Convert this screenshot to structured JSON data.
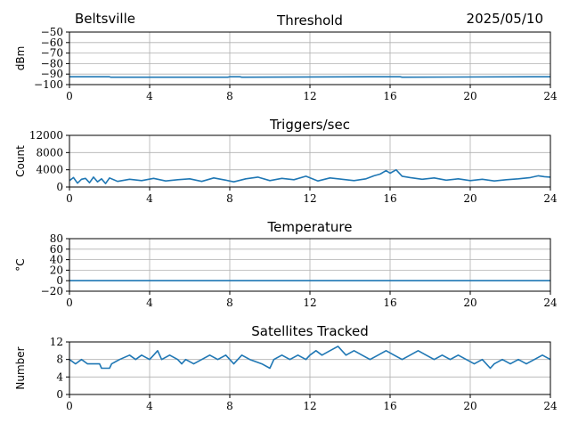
{
  "header": {
    "station": "Beltsville",
    "date": "2025/05/10"
  },
  "colors": {
    "series": "#1f77b4",
    "grid": "#b0b0b0",
    "axis": "#000000"
  },
  "chart_data": [
    {
      "type": "line",
      "title": "Threshold",
      "xlabel": "",
      "ylabel": "dBm",
      "xlim": [
        0,
        24
      ],
      "ylim": [
        -100,
        -50
      ],
      "xticks": [
        0,
        4,
        8,
        12,
        16,
        20,
        24
      ],
      "yticks": [
        -100,
        -90,
        -80,
        -70,
        -60,
        -50
      ],
      "ytick_labels": [
        "−100",
        "−90",
        "−80",
        "−70",
        "−60",
        "−50"
      ],
      "grid": true,
      "series": [
        {
          "x": [
            0,
            2,
            2.05,
            7.9,
            8,
            8.5,
            8.6,
            15,
            16.5,
            16.6,
            23.1,
            24
          ],
          "y": [
            -92.5,
            -92.5,
            -93,
            -93,
            -92.5,
            -92.5,
            -93,
            -92.5,
            -92.5,
            -93,
            -92.5,
            -92.5
          ]
        }
      ]
    },
    {
      "type": "line",
      "title": "Triggers/sec",
      "xlabel": "",
      "ylabel": "Count",
      "xlim": [
        0,
        24
      ],
      "ylim": [
        0,
        12000
      ],
      "xticks": [
        0,
        4,
        8,
        12,
        16,
        20,
        24
      ],
      "yticks": [
        0,
        4000,
        8000,
        12000
      ],
      "ytick_labels": [
        "0",
        "4000",
        "8000",
        "12000"
      ],
      "grid": true,
      "series": [
        {
          "x": [
            0,
            0.2,
            0.4,
            0.6,
            0.8,
            1.0,
            1.2,
            1.4,
            1.6,
            1.8,
            2.0,
            2.4,
            3.0,
            3.6,
            4.2,
            4.8,
            5.4,
            6.0,
            6.6,
            7.2,
            7.8,
            8.2,
            8.8,
            9.4,
            10.0,
            10.6,
            11.2,
            11.8,
            12.4,
            13.0,
            13.6,
            14.2,
            14.8,
            15.2,
            15.5,
            15.8,
            16.0,
            16.3,
            16.6,
            17.0,
            17.6,
            18.2,
            18.8,
            19.4,
            20.0,
            20.6,
            21.2,
            21.8,
            22.4,
            23.0,
            23.4,
            23.7,
            24.0
          ],
          "y": [
            1500,
            2200,
            900,
            1800,
            2000,
            1000,
            2300,
            1200,
            1900,
            800,
            2100,
            1300,
            1800,
            1500,
            2000,
            1400,
            1700,
            1900,
            1300,
            2100,
            1600,
            1200,
            1900,
            2300,
            1500,
            2000,
            1700,
            2500,
            1400,
            2100,
            1800,
            1500,
            1900,
            2600,
            3000,
            3800,
            3200,
            4000,
            2500,
            2200,
            1800,
            2100,
            1600,
            1900,
            1500,
            1800,
            1400,
            1700,
            1900,
            2200,
            2600,
            2400,
            2300
          ]
        }
      ]
    },
    {
      "type": "line",
      "title": "Temperature",
      "xlabel": "",
      "ylabel": "°C",
      "xlim": [
        0,
        24
      ],
      "ylim": [
        -20,
        80
      ],
      "xticks": [
        0,
        4,
        8,
        12,
        16,
        20,
        24
      ],
      "yticks": [
        -20,
        0,
        20,
        40,
        60,
        80
      ],
      "ytick_labels": [
        "−20",
        "0",
        "20",
        "40",
        "60",
        "80"
      ],
      "grid": true,
      "series": [
        {
          "x": [
            0,
            24
          ],
          "y": [
            0,
            0
          ]
        }
      ]
    },
    {
      "type": "line",
      "title": "Satellites Tracked",
      "xlabel": "",
      "ylabel": "Number",
      "xlim": [
        0,
        24
      ],
      "ylim": [
        0,
        12
      ],
      "xticks": [
        0,
        4,
        8,
        12,
        16,
        20,
        24
      ],
      "yticks": [
        0,
        4,
        8,
        12
      ],
      "ytick_labels": [
        "0",
        "4",
        "8",
        "12"
      ],
      "grid": true,
      "series": [
        {
          "x": [
            0,
            0.3,
            0.6,
            0.9,
            1.0,
            1.5,
            1.6,
            2.0,
            2.1,
            2.5,
            3.0,
            3.3,
            3.6,
            4.0,
            4.2,
            4.4,
            4.6,
            5.0,
            5.4,
            5.6,
            5.8,
            6.2,
            6.6,
            7.0,
            7.4,
            7.8,
            8.0,
            8.2,
            8.6,
            9.0,
            9.6,
            10.0,
            10.2,
            10.6,
            11.0,
            11.4,
            11.8,
            12.0,
            12.3,
            12.6,
            13.0,
            13.4,
            13.8,
            14.2,
            14.6,
            15.0,
            15.4,
            15.8,
            16.2,
            16.6,
            17.0,
            17.4,
            17.8,
            18.2,
            18.6,
            19.0,
            19.4,
            19.8,
            20.2,
            20.6,
            21.0,
            21.2,
            21.6,
            22.0,
            22.4,
            22.8,
            23.2,
            23.6,
            24.0
          ],
          "y": [
            8,
            7,
            8,
            7,
            7,
            7,
            6,
            6,
            7,
            8,
            9,
            8,
            9,
            8,
            9,
            10,
            8,
            9,
            8,
            7,
            8,
            7,
            8,
            9,
            8,
            9,
            8,
            7,
            9,
            8,
            7,
            6,
            8,
            9,
            8,
            9,
            8,
            9,
            10,
            9,
            10,
            11,
            9,
            10,
            9,
            8,
            9,
            10,
            9,
            8,
            9,
            10,
            9,
            8,
            9,
            8,
            9,
            8,
            7,
            8,
            6,
            7,
            8,
            7,
            8,
            7,
            8,
            9,
            8
          ]
        }
      ]
    }
  ]
}
